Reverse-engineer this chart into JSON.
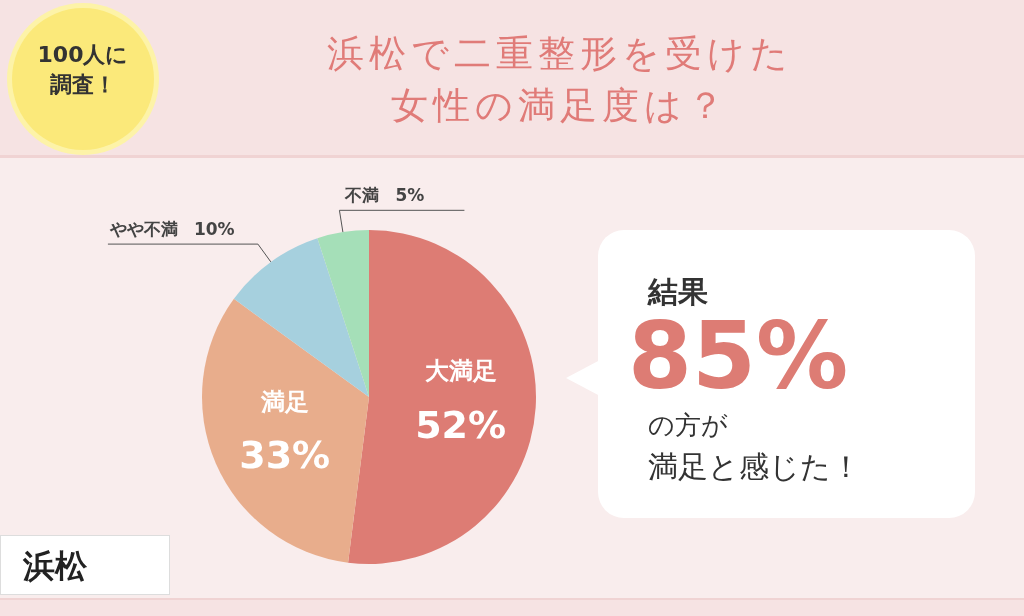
{
  "chart_data": {
    "type": "pie",
    "title": "浜松で二重整形を受けた女性の満足度は？",
    "categories": [
      "大満足",
      "満足",
      "やや不満",
      "不満"
    ],
    "values": [
      52,
      33,
      10,
      5
    ],
    "colors": [
      "#dd7c74",
      "#e8ad8c",
      "#a6d0de",
      "#a5dfb8"
    ],
    "value_labels": [
      "52%",
      "33%",
      "10%",
      "5%"
    ],
    "annotations": [
      "100人に調査！",
      "結果",
      "85%",
      "の方が",
      "満足と感じた！",
      "浜松"
    ]
  }
}
